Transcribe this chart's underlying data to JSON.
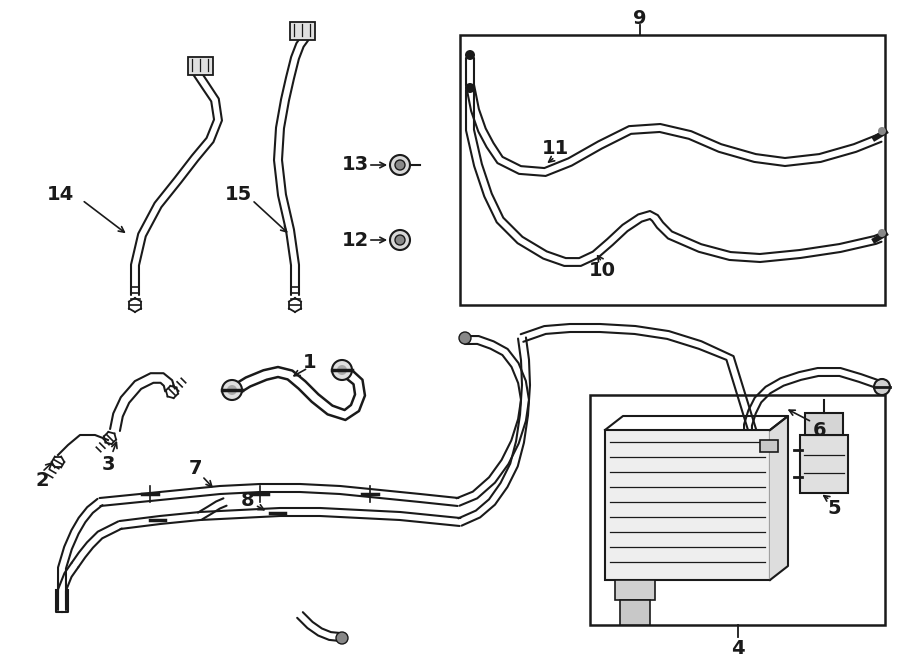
{
  "bg_color": "#ffffff",
  "lc": "#1a1a1a",
  "lw": 1.8,
  "fs": 14,
  "fw": "bold"
}
